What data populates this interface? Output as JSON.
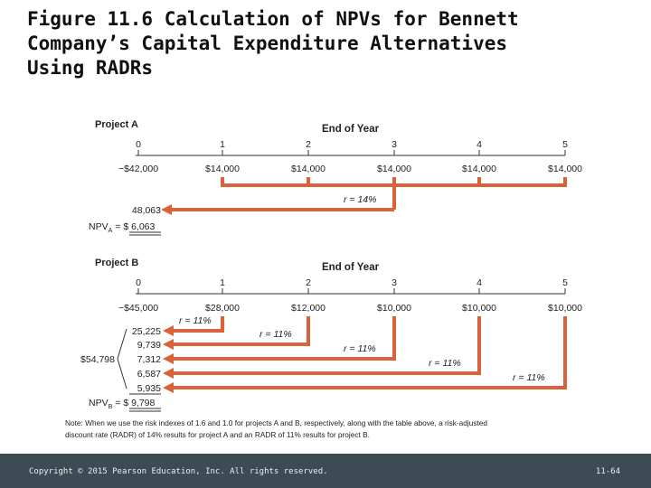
{
  "slide": {
    "title_line1": "Figure 11.6 Calculation of NPVs for Bennett",
    "title_line2": "Company’s Capital Expenditure Alternatives",
    "title_line3": "Using RADRs",
    "footer_copyright": "Copyright © 2015 Pearson Education, Inc. All rights reserved.",
    "footer_page": "11-64"
  },
  "figure": {
    "accent_color": "#d9623b",
    "projectA": {
      "label": "Project A",
      "header": "End of Year",
      "years": [
        "0",
        "1",
        "2",
        "3",
        "4",
        "5"
      ],
      "flows": [
        "−$42,000",
        "$14,000",
        "$14,000",
        "$14,000",
        "$14,000",
        "$14,000"
      ],
      "rate": "r = 14%",
      "pv": "48,063",
      "npv_prefix": "NPV",
      "npv_sub": "A",
      "npv_value": "= $  6,063"
    },
    "projectB": {
      "label": "Project B",
      "header": "End of Year",
      "years": [
        "0",
        "1",
        "2",
        "3",
        "4",
        "5"
      ],
      "flows": [
        "−$45,000",
        "$28,000",
        "$12,000",
        "$10,000",
        "$10,000",
        "$10,000"
      ],
      "rates": [
        "r = 11%",
        "r = 11%",
        "r = 11%",
        "r = 11%",
        "r = 11%"
      ],
      "pvs": [
        "25,225",
        "9,739",
        "7,312",
        "6,587",
        "5,935"
      ],
      "total": "$54,798",
      "npv_prefix": "NPV",
      "npv_sub": "B",
      "npv_value": "= $  9,798"
    },
    "note_line1": "Note: When we use the risk indexes of 1.6 and 1.0 for projects A and B, respectively, along with the table above, a risk-adjusted",
    "note_line2": "discount rate (RADR) of 14% results for project A and an RADR of 11% results for project B."
  }
}
